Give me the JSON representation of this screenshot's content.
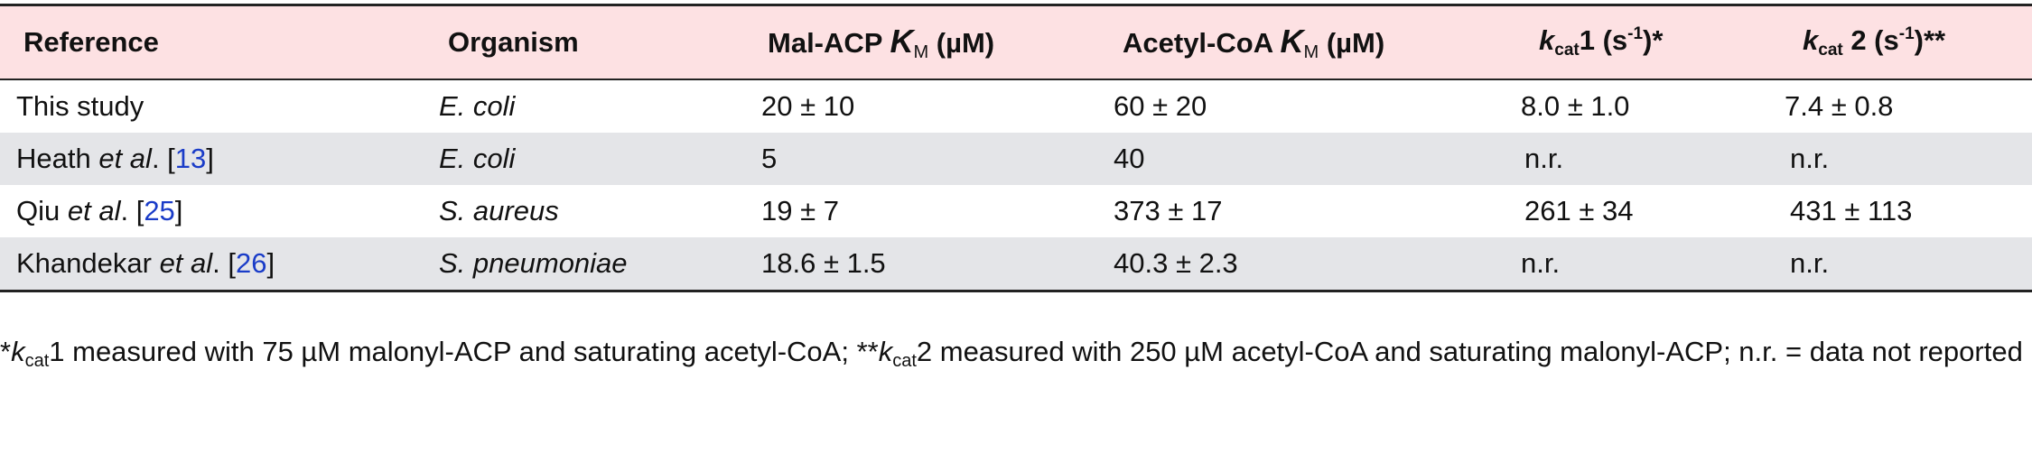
{
  "table": {
    "headers": {
      "reference": "Reference",
      "organism": "Organism",
      "malacp_prefix": "Mal-ACP ",
      "malacp_k": "K",
      "malacp_sub": "M",
      "malacp_unit": " (µM)",
      "acetyl_prefix": "Acetyl-CoA ",
      "acetyl_k": "K",
      "acetyl_sub": "M",
      "acetyl_unit": " (µM)",
      "kcat1_k": "k",
      "kcat1_sub": "cat",
      "kcat1_main": "1 (s",
      "kcat1_sup": "-1",
      "kcat1_tail": ")*",
      "kcat2_k": "k",
      "kcat2_sub": "cat",
      "kcat2_main": " 2 (s",
      "kcat2_sup": "-1",
      "kcat2_tail": ")**"
    },
    "rows": [
      {
        "ref_plain": "This study",
        "ref_etal": "",
        "ref_open": "",
        "ref_num": "",
        "ref_close": "",
        "organism": "E. coli",
        "malacp": "20 ± 10",
        "acetyl": "60 ± 20",
        "kcat1": "8.0 ± 1.0",
        "kcat2": "7.4 ± 0.8"
      },
      {
        "ref_plain": "Heath ",
        "ref_etal": "et al",
        "ref_open": ". [",
        "ref_num": "13",
        "ref_close": "]",
        "organism": "E. coli",
        "malacp": "5",
        "acetyl": "40",
        "kcat1": "n.r.",
        "kcat2": "n.r."
      },
      {
        "ref_plain": "Qiu ",
        "ref_etal": "et al",
        "ref_open": ". [",
        "ref_num": "25",
        "ref_close": "]",
        "organism": "S. aureus",
        "malacp": "19 ± 7",
        "acetyl": "373 ± 17",
        "kcat1": "261 ± 34",
        "kcat2": "431 ± 113"
      },
      {
        "ref_plain": "Khandekar ",
        "ref_etal": "et al",
        "ref_open": ". [",
        "ref_num": "26",
        "ref_close": "]",
        "organism": "S. pneumoniae",
        "malacp": "18.6 ± 1.5",
        "acetyl": "40.3 ± 2.3",
        "kcat1": "n.r.",
        "kcat2": "n.r."
      }
    ]
  },
  "footnote": {
    "star1": "*",
    "k1": "k",
    "k1_sub": "cat",
    "part1": "1 measured with 75 µM malonyl-ACP and saturating acetyl-CoA; **",
    "k2": "k",
    "k2_sub": "cat",
    "part2": "2 measured with 250 µM acetyl-CoA and saturating malonyl-ACP; n.r. = data not reported"
  },
  "colors": {
    "header_bg": "#fde1e3",
    "shaded_row_bg": "#e4e5e8",
    "link": "#1a3cc8"
  }
}
